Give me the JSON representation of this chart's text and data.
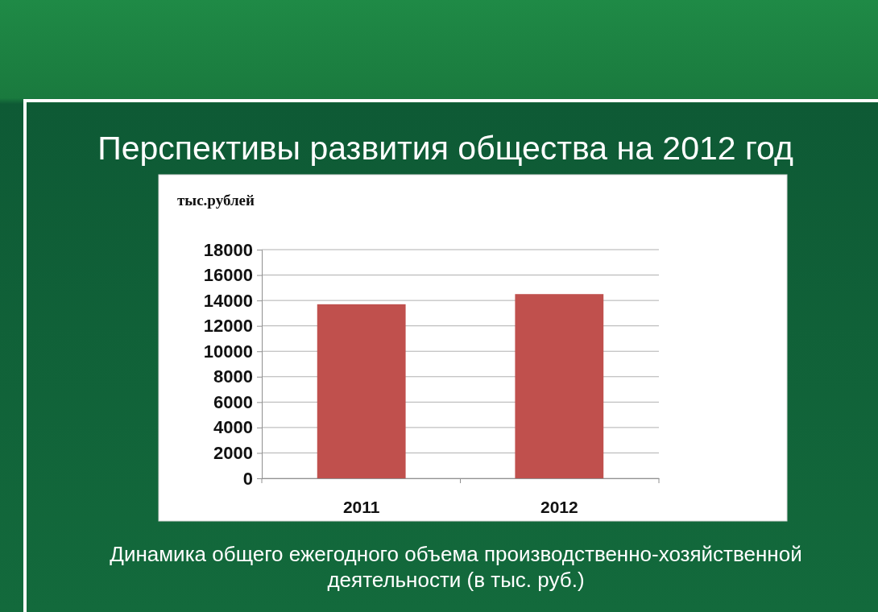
{
  "chart_data": {
    "type": "bar",
    "title": "Перспективы развития общества на 2012 год",
    "ylabel": "тыс.рублей",
    "categories": [
      "2011",
      "2012"
    ],
    "values": [
      13700,
      14500
    ],
    "color": "#c0504d",
    "ylim": [
      0,
      18000
    ],
    "yticks": [
      0,
      2000,
      4000,
      6000,
      8000,
      10000,
      12000,
      14000,
      16000,
      18000
    ],
    "grid": "y",
    "annotations": [
      "Динамика общего ежегодного объема производственно-хозяйственной деятельности (в тыс. руб.)"
    ]
  }
}
